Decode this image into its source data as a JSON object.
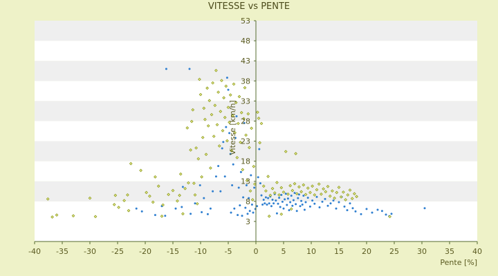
{
  "chart_data": {
    "type": "scatter",
    "title": "VITESSE vs PENTE",
    "xlabel": "Pente [%]",
    "ylabel": "Vitesse [km/h]",
    "xlim": [
      -40,
      40
    ],
    "ylim": [
      -2,
      53
    ],
    "x_ticks": [
      -40,
      -35,
      -30,
      -25,
      -20,
      -15,
      -10,
      -5,
      0,
      5,
      10,
      15,
      20,
      25,
      30,
      35,
      40
    ],
    "x_tick_labels": [
      "-40",
      "-35",
      "-30",
      "-25",
      "-20",
      "-15",
      "-10",
      "-5",
      "0",
      "5",
      "10",
      "15",
      "20",
      "25",
      "30",
      "35",
      "40"
    ],
    "y_ticks": [
      3,
      8,
      13,
      18,
      23,
      28,
      33,
      38,
      43,
      48,
      53
    ],
    "y_tick_labels": [
      "3",
      "8",
      "13",
      "18",
      "23",
      "28",
      "33",
      "38",
      "43",
      "48",
      "53"
    ],
    "grid": "horizontal bands",
    "colors": {
      "background": "#eef2c8",
      "band_light": "#ffffff",
      "band_dark": "#efefef",
      "axis": "#556b2f",
      "series_blue": "#2f7fd0",
      "series_olive": "#8a9a1a"
    },
    "series": [
      {
        "color": "#2f7fd0",
        "marker": "dot",
        "points": [
          [
            -16.2,
            41
          ],
          [
            -12,
            41
          ],
          [
            -21.6,
            6.2
          ],
          [
            -20.6,
            5.5
          ],
          [
            -18.2,
            4.6
          ],
          [
            -17,
            6.8
          ],
          [
            -16.4,
            4.4
          ],
          [
            -14.5,
            6.2
          ],
          [
            -13.2,
            11.6
          ],
          [
            -13.4,
            6.6
          ],
          [
            -11.8,
            4.9
          ],
          [
            -11,
            7.5
          ],
          [
            -10.1,
            12
          ],
          [
            -9.8,
            5.3
          ],
          [
            -9.4,
            8.8
          ],
          [
            -8.7,
            4.8
          ],
          [
            -8.2,
            6.2
          ],
          [
            -7.8,
            10.5
          ],
          [
            -7.2,
            14.2
          ],
          [
            -6.8,
            16.8
          ],
          [
            -6.4,
            10.5
          ],
          [
            -6.1,
            21.2
          ],
          [
            -5.9,
            22.8
          ],
          [
            -5.6,
            14.2
          ],
          [
            -5.4,
            26.5
          ],
          [
            -5.2,
            38.8
          ],
          [
            -5,
            35.8
          ],
          [
            -4.8,
            25
          ],
          [
            -4.6,
            19.8
          ],
          [
            -4.5,
            5.2
          ],
          [
            -4.3,
            12
          ],
          [
            -4.1,
            17.2
          ],
          [
            -3.9,
            6.2
          ],
          [
            -3.7,
            23.8
          ],
          [
            -3.5,
            29.2
          ],
          [
            -3.3,
            4.6
          ],
          [
            -3.1,
            11.4
          ],
          [
            -2.9,
            7
          ],
          [
            -2.7,
            15.3
          ],
          [
            -2.5,
            4.4
          ],
          [
            -2.3,
            9
          ],
          [
            -2.1,
            27.5
          ],
          [
            -1.9,
            6.4
          ],
          [
            -1.7,
            12
          ],
          [
            -1.5,
            4.9
          ],
          [
            -1.3,
            8.8
          ],
          [
            -1.1,
            5.6
          ],
          [
            -0.9,
            14.5
          ],
          [
            -0.7,
            7.2
          ],
          [
            -0.5,
            5.2
          ],
          [
            -0.3,
            11.4
          ],
          [
            -0.1,
            6.1
          ],
          [
            0.2,
            6.8
          ],
          [
            0.4,
            14
          ],
          [
            0.6,
            21
          ],
          [
            0.8,
            12.5
          ],
          [
            1,
            9.5
          ],
          [
            1.2,
            7.2
          ],
          [
            1.4,
            8.4
          ],
          [
            1.6,
            7.5
          ],
          [
            1.8,
            9
          ],
          [
            2,
            7.2
          ],
          [
            2.2,
            8.8
          ],
          [
            2.4,
            7.5
          ],
          [
            2.6,
            9.2
          ],
          [
            2.8,
            6.8
          ],
          [
            3,
            8.4
          ],
          [
            3.2,
            7.5
          ],
          [
            3.4,
            9.8
          ],
          [
            3.6,
            8.2
          ],
          [
            3.8,
            5
          ],
          [
            4,
            7.4
          ],
          [
            4.2,
            8.9
          ],
          [
            4.4,
            6.6
          ],
          [
            4.6,
            9.6
          ],
          [
            4.8,
            7.9
          ],
          [
            5,
            6.2
          ],
          [
            5.2,
            8.5
          ],
          [
            5.4,
            9.9
          ],
          [
            5.6,
            7.1
          ],
          [
            5.8,
            8.7
          ],
          [
            6,
            5.8
          ],
          [
            6.2,
            7.8
          ],
          [
            6.4,
            9.4
          ],
          [
            6.6,
            6.9
          ],
          [
            6.8,
            8.3
          ],
          [
            7,
            10.1
          ],
          [
            7.2,
            7.3
          ],
          [
            7.4,
            5.6
          ],
          [
            7.6,
            8.8
          ],
          [
            7.8,
            9.7
          ],
          [
            8,
            6.8
          ],
          [
            8.2,
            8.1
          ],
          [
            8.4,
            7.2
          ],
          [
            8.6,
            9.4
          ],
          [
            8.8,
            5.9
          ],
          [
            9,
            7.8
          ],
          [
            9.4,
            8.9
          ],
          [
            9.8,
            6.7
          ],
          [
            10.2,
            8.2
          ],
          [
            10.6,
            7.4
          ],
          [
            11,
            9.1
          ],
          [
            11.5,
            6.5
          ],
          [
            12,
            7.9
          ],
          [
            12.5,
            8.6
          ],
          [
            13,
            6.9
          ],
          [
            13.5,
            7.5
          ],
          [
            14,
            8.2
          ],
          [
            14.5,
            6.2
          ],
          [
            15,
            7.8
          ],
          [
            15.5,
            9.1
          ],
          [
            16,
            6.7
          ],
          [
            16.5,
            5.8
          ],
          [
            17,
            7.5
          ],
          [
            17.5,
            6.3
          ],
          [
            18,
            5.5
          ],
          [
            19,
            4.8
          ],
          [
            20,
            6.1
          ],
          [
            21,
            5.2
          ],
          [
            22,
            5.9
          ],
          [
            22.8,
            5.6
          ],
          [
            23.5,
            4.7
          ],
          [
            24.1,
            4.3
          ],
          [
            24.5,
            4.9
          ],
          [
            30.5,
            6.3
          ]
        ]
      },
      {
        "color": "#8a9a1a",
        "marker": "diamond",
        "points": [
          [
            -37.6,
            8.6
          ],
          [
            -36.8,
            4.1
          ],
          [
            -36,
            4.6
          ],
          [
            -33,
            4.4
          ],
          [
            -30,
            8.8
          ],
          [
            -29,
            4.2
          ],
          [
            -25.6,
            7.2
          ],
          [
            -25.4,
            9.5
          ],
          [
            -24.8,
            6.5
          ],
          [
            -23.8,
            8.2
          ],
          [
            -23.2,
            9.6
          ],
          [
            -23,
            5.7
          ],
          [
            -22.6,
            17.4
          ],
          [
            -20.8,
            15.7
          ],
          [
            -19.8,
            10.2
          ],
          [
            -19.2,
            9.3
          ],
          [
            -18.6,
            7.8
          ],
          [
            -18.2,
            14.1
          ],
          [
            -17.6,
            11.8
          ],
          [
            -17,
            4.3
          ],
          [
            -16.8,
            7.1
          ],
          [
            -15.8,
            9.7
          ],
          [
            -15,
            10.7
          ],
          [
            -14.2,
            8.1
          ],
          [
            -13.8,
            9.5
          ],
          [
            -13.6,
            14.8
          ],
          [
            -13.2,
            4.9
          ],
          [
            -12.8,
            11.2
          ],
          [
            -12.4,
            26.3
          ],
          [
            -12.2,
            12.6
          ],
          [
            -11.8,
            20.8
          ],
          [
            -11.6,
            27.9
          ],
          [
            -11.4,
            30.8
          ],
          [
            -11.2,
            12.5
          ],
          [
            -11,
            9.6
          ],
          [
            -10.8,
            21.3
          ],
          [
            -10.6,
            7.4
          ],
          [
            -10.4,
            18.6
          ],
          [
            -10.2,
            38.4
          ],
          [
            -10,
            34.6
          ],
          [
            -9.8,
            14.1
          ],
          [
            -9.6,
            23.9
          ],
          [
            -9.4,
            31.2
          ],
          [
            -9.2,
            28.4
          ],
          [
            -9,
            19.7
          ],
          [
            -8.8,
            36.2
          ],
          [
            -8.6,
            26.8
          ],
          [
            -8.4,
            33.1
          ],
          [
            -8.2,
            16.3
          ],
          [
            -8,
            29.6
          ],
          [
            -7.8,
            37.5
          ],
          [
            -7.6,
            24.2
          ],
          [
            -7.4,
            31.9
          ],
          [
            -7.2,
            40.6
          ],
          [
            -7,
            27.1
          ],
          [
            -6.8,
            35.2
          ],
          [
            -6.6,
            21.8
          ],
          [
            -6.4,
            30.4
          ],
          [
            -6.2,
            38.1
          ],
          [
            -6,
            25.6
          ],
          [
            -5.8,
            33.8
          ],
          [
            -5.6,
            28.9
          ],
          [
            -5.4,
            36.7
          ],
          [
            -5.2,
            23.1
          ],
          [
            -5,
            31.4
          ],
          [
            -4.8,
            27.7
          ],
          [
            -4.6,
            34.5
          ],
          [
            -4.4,
            20.6
          ],
          [
            -4.2,
            29.3
          ],
          [
            -4,
            37.2
          ],
          [
            -3.8,
            25.1
          ],
          [
            -3.6,
            32.6
          ],
          [
            -3.4,
            18.9
          ],
          [
            -3.2,
            27.4
          ],
          [
            -3,
            34.1
          ],
          [
            -2.8,
            22.7
          ],
          [
            -2.6,
            30.1
          ],
          [
            -2.4,
            15.9
          ],
          [
            -2.2,
            28.6
          ],
          [
            -2,
            36.3
          ],
          [
            -1.8,
            24.5
          ],
          [
            -1.6,
            13.2
          ],
          [
            -1.4,
            29.8
          ],
          [
            -1.2,
            21.4
          ],
          [
            -1,
            10.6
          ],
          [
            -0.8,
            26.2
          ],
          [
            -0.6,
            8.4
          ],
          [
            -0.4,
            16.7
          ],
          [
            -0.2,
            12.3
          ],
          [
            0.3,
            30.2
          ],
          [
            0.5,
            28.7
          ],
          [
            0.7,
            22.6
          ],
          [
            1,
            27.4
          ],
          [
            1.4,
            11.8
          ],
          [
            1.8,
            10.6
          ],
          [
            2.2,
            14.2
          ],
          [
            2.6,
            9.5
          ],
          [
            3,
            11.2
          ],
          [
            3.4,
            10.1
          ],
          [
            3.8,
            12.7
          ],
          [
            4.2,
            9.6
          ],
          [
            4.6,
            11.4
          ],
          [
            5,
            10.3
          ],
          [
            5.4,
            20.4
          ],
          [
            5.8,
            9.8
          ],
          [
            6.2,
            11.9
          ],
          [
            6.6,
            10.7
          ],
          [
            7,
            12.4
          ],
          [
            7.4,
            9.9
          ],
          [
            7.8,
            11.6
          ],
          [
            8.2,
            10.4
          ],
          [
            8.6,
            12.1
          ],
          [
            9,
            9.7
          ],
          [
            9.4,
            11.3
          ],
          [
            9.8,
            10.2
          ],
          [
            10.2,
            11.8
          ],
          [
            10.6,
            9.6
          ],
          [
            11,
            10.9
          ],
          [
            11.4,
            12.3
          ],
          [
            11.8,
            9.8
          ],
          [
            12.2,
            11.1
          ],
          [
            12.6,
            10.4
          ],
          [
            13,
            11.7
          ],
          [
            13.4,
            9.3
          ],
          [
            13.8,
            10.6
          ],
          [
            14.2,
            8.8
          ],
          [
            14.6,
            10.2
          ],
          [
            15,
            11.5
          ],
          [
            15.4,
            9.1
          ],
          [
            15.8,
            10.3
          ],
          [
            16.2,
            8.4
          ],
          [
            16.6,
            9.6
          ],
          [
            17,
            10.8
          ],
          [
            17.4,
            8.7
          ],
          [
            17.8,
            9.9
          ],
          [
            18.2,
            9.2
          ],
          [
            2.4,
            4.3
          ],
          [
            4.6,
            4.8
          ],
          [
            6.4,
            6.1
          ],
          [
            7.2,
            19.9
          ],
          [
            24.2,
            4.2
          ]
        ]
      }
    ]
  }
}
